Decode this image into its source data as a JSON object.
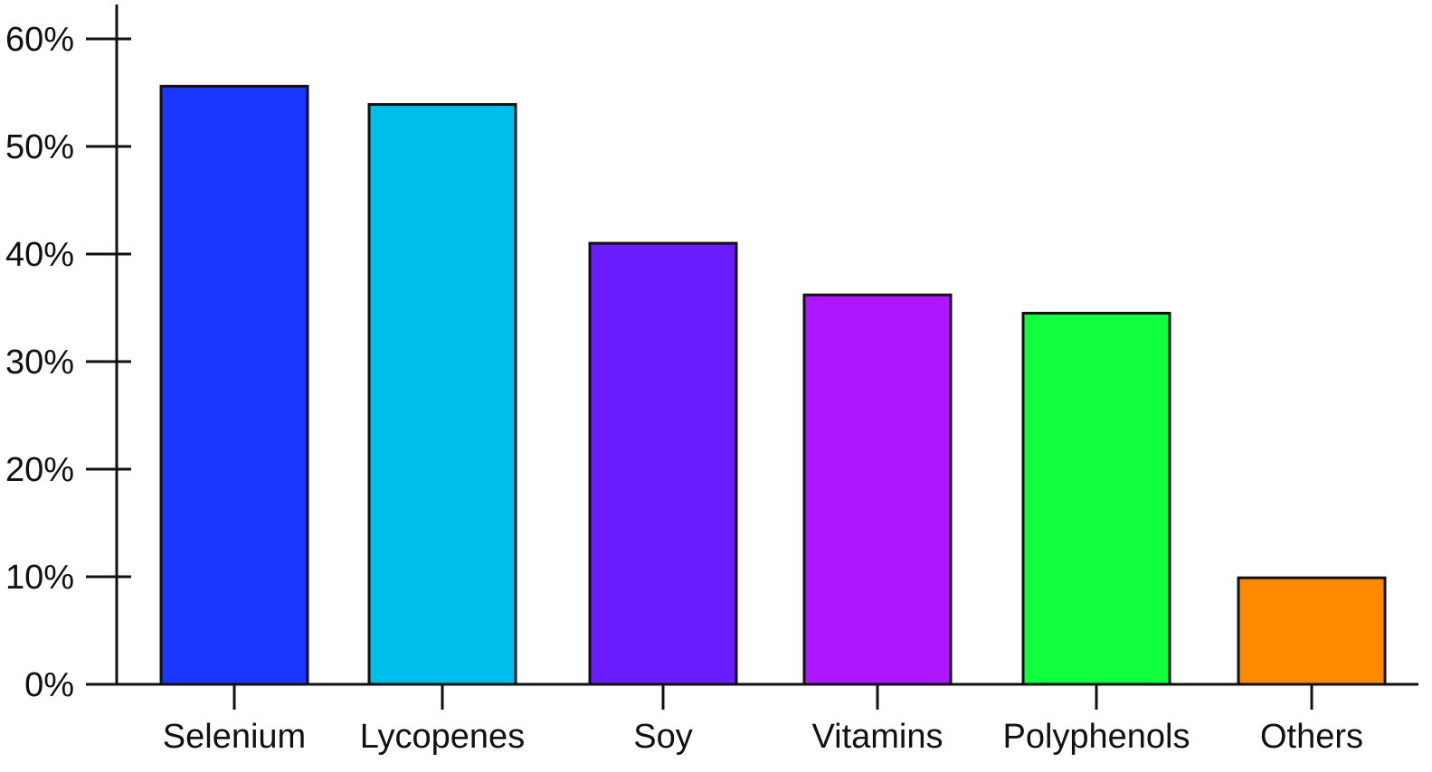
{
  "chart_data": {
    "type": "bar",
    "categories": [
      "Selenium",
      "Lycopenes",
      "Soy",
      "Vitamins",
      "Polyphenols",
      "Others"
    ],
    "values": [
      55.6,
      53.9,
      41.0,
      36.2,
      34.5,
      9.9
    ],
    "colors": [
      "#1836ff",
      "#00bdec",
      "#6a1cff",
      "#ae16ff",
      "#10ff3c",
      "#ff8a00"
    ],
    "ylim": [
      0,
      60
    ],
    "yticks": [
      0,
      10,
      20,
      30,
      40,
      50,
      60
    ],
    "yticklabels": [
      "0%",
      "10%",
      "20%",
      "30%",
      "40%",
      "50%",
      "60%"
    ],
    "grid": false,
    "legend": "none"
  }
}
